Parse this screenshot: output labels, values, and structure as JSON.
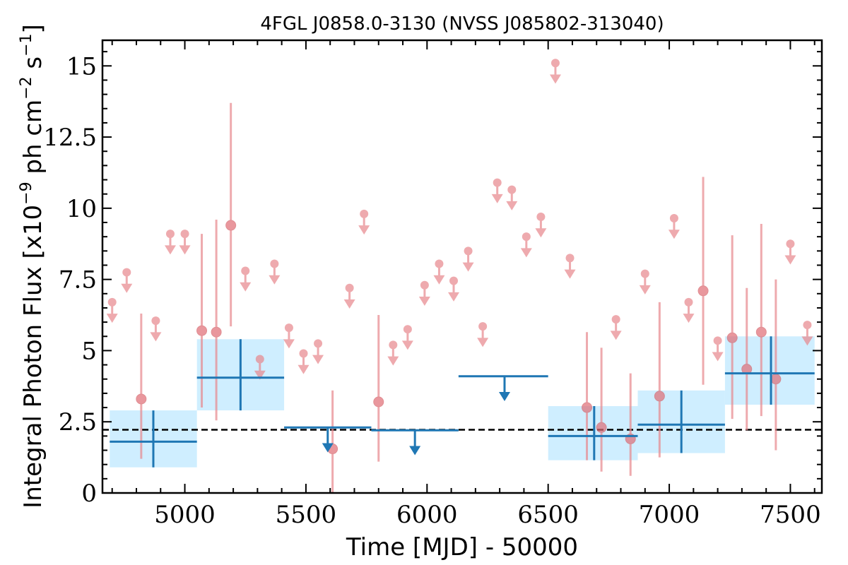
{
  "chart_data": {
    "type": "scatter",
    "title": "4FGL J0858.0-3130 (NVSS J085802-313040)",
    "xlabel": "Time [MJD] - 50000",
    "ylabel_main": "Integral Photon Flux [x10",
    "ylabel_exp1": "−9",
    "ylabel_mid": " ph cm",
    "ylabel_exp2": "−2",
    "ylabel_mid2": " s",
    "ylabel_exp3": "−1",
    "ylabel_end": "]",
    "xlim": [
      4660,
      7630
    ],
    "ylim": [
      0,
      15.9
    ],
    "xticks": [
      5000,
      5500,
      6000,
      6500,
      7000,
      7500
    ],
    "xtick_labels": [
      "5000",
      "5500",
      "6000",
      "6500",
      "7000",
      "7500"
    ],
    "yticks": [
      0,
      2.5,
      5,
      7.5,
      10,
      12.5,
      15
    ],
    "ytick_labels": [
      "0",
      "2.5",
      "5",
      "7.5",
      "10",
      "12.5",
      "15"
    ],
    "average_flux": 2.22,
    "colors": {
      "short_bin": "#e8878c",
      "long_bin": "#1f77b4",
      "long_bin_band": "#cfeeff",
      "average_line": "#000000"
    },
    "short_bins": [
      {
        "x": 4700,
        "y": 6.7,
        "ul": true
      },
      {
        "x": 4760,
        "y": 7.75,
        "ul": true
      },
      {
        "x": 4820,
        "y": 3.3,
        "lo": 1.2,
        "hi": 6.3
      },
      {
        "x": 4880,
        "y": 6.05,
        "ul": true
      },
      {
        "x": 4940,
        "y": 9.1,
        "ul": true
      },
      {
        "x": 5000,
        "y": 9.1,
        "ul": true
      },
      {
        "x": 5070,
        "y": 5.7,
        "lo": 3.0,
        "hi": 9.1
      },
      {
        "x": 5130,
        "y": 5.65,
        "lo": 2.55,
        "hi": 9.6
      },
      {
        "x": 5190,
        "y": 9.4,
        "lo": 5.85,
        "hi": 13.7
      },
      {
        "x": 5250,
        "y": 7.8,
        "ul": true
      },
      {
        "x": 5310,
        "y": 4.7,
        "ul": true
      },
      {
        "x": 5370,
        "y": 8.05,
        "ul": true
      },
      {
        "x": 5430,
        "y": 5.8,
        "ul": true
      },
      {
        "x": 5490,
        "y": 4.9,
        "ul": true
      },
      {
        "x": 5550,
        "y": 5.25,
        "ul": true
      },
      {
        "x": 5610,
        "y": 1.55,
        "lo": 0.0,
        "hi": 3.6
      },
      {
        "x": 5680,
        "y": 7.2,
        "ul": true
      },
      {
        "x": 5740,
        "y": 9.8,
        "ul": true
      },
      {
        "x": 5800,
        "y": 3.2,
        "lo": 1.1,
        "hi": 6.25
      },
      {
        "x": 5860,
        "y": 5.2,
        "ul": true
      },
      {
        "x": 5920,
        "y": 5.75,
        "ul": true
      },
      {
        "x": 5990,
        "y": 7.3,
        "ul": true
      },
      {
        "x": 6050,
        "y": 8.05,
        "ul": true
      },
      {
        "x": 6110,
        "y": 7.45,
        "ul": true
      },
      {
        "x": 6170,
        "y": 8.5,
        "ul": true
      },
      {
        "x": 6230,
        "y": 5.85,
        "ul": true
      },
      {
        "x": 6290,
        "y": 10.9,
        "ul": true
      },
      {
        "x": 6350,
        "y": 10.65,
        "ul": true
      },
      {
        "x": 6410,
        "y": 9.0,
        "ul": true
      },
      {
        "x": 6470,
        "y": 9.7,
        "ul": true
      },
      {
        "x": 6530,
        "y": 15.1,
        "ul": true
      },
      {
        "x": 6590,
        "y": 8.25,
        "ul": true
      },
      {
        "x": 6660,
        "y": 3.0,
        "lo": 1.15,
        "hi": 5.65
      },
      {
        "x": 6720,
        "y": 2.3,
        "lo": 0.75,
        "hi": 5.1
      },
      {
        "x": 6780,
        "y": 6.1,
        "ul": true
      },
      {
        "x": 6840,
        "y": 1.9,
        "lo": 0.6,
        "hi": 4.2
      },
      {
        "x": 6900,
        "y": 7.7,
        "ul": true
      },
      {
        "x": 6960,
        "y": 3.4,
        "lo": 1.25,
        "hi": 6.7
      },
      {
        "x": 7020,
        "y": 9.65,
        "ul": true
      },
      {
        "x": 7080,
        "y": 6.7,
        "ul": true
      },
      {
        "x": 7140,
        "y": 7.1,
        "lo": 3.8,
        "hi": 11.1
      },
      {
        "x": 7200,
        "y": 5.35,
        "ul": true
      },
      {
        "x": 7260,
        "y": 5.45,
        "lo": 2.6,
        "hi": 9.05
      },
      {
        "x": 7320,
        "y": 4.35,
        "lo": 2.2,
        "hi": 7.2
      },
      {
        "x": 7380,
        "y": 5.65,
        "lo": 2.7,
        "hi": 9.45
      },
      {
        "x": 7440,
        "y": 4.0,
        "lo": 1.5,
        "hi": 7.5
      },
      {
        "x": 7500,
        "y": 8.75,
        "ul": true
      },
      {
        "x": 7570,
        "y": 5.9,
        "ul": true
      }
    ],
    "long_bins": [
      {
        "x0": 4690,
        "x1": 5050,
        "xc": 4870,
        "y": 1.8,
        "lo": 0.9,
        "hi": 2.9,
        "ul": false
      },
      {
        "x0": 5050,
        "x1": 5410,
        "xc": 5230,
        "y": 4.05,
        "lo": 2.9,
        "hi": 5.4,
        "ul": false
      },
      {
        "x0": 5410,
        "x1": 5770,
        "xc": 5590,
        "y": 2.3,
        "ul": true
      },
      {
        "x0": 5770,
        "x1": 6130,
        "xc": 5950,
        "y": 2.2,
        "ul": true
      },
      {
        "x0": 6130,
        "x1": 6500,
        "xc": 6320,
        "y": 4.1,
        "ul": true
      },
      {
        "x0": 6500,
        "x1": 6870,
        "xc": 6690,
        "y": 2.0,
        "lo": 1.15,
        "hi": 3.05,
        "ul": false
      },
      {
        "x0": 6870,
        "x1": 7230,
        "xc": 7050,
        "y": 2.4,
        "lo": 1.4,
        "hi": 3.6,
        "ul": false
      },
      {
        "x0": 7230,
        "x1": 7600,
        "xc": 7420,
        "y": 4.2,
        "lo": 3.1,
        "hi": 5.5,
        "ul": false
      }
    ]
  }
}
